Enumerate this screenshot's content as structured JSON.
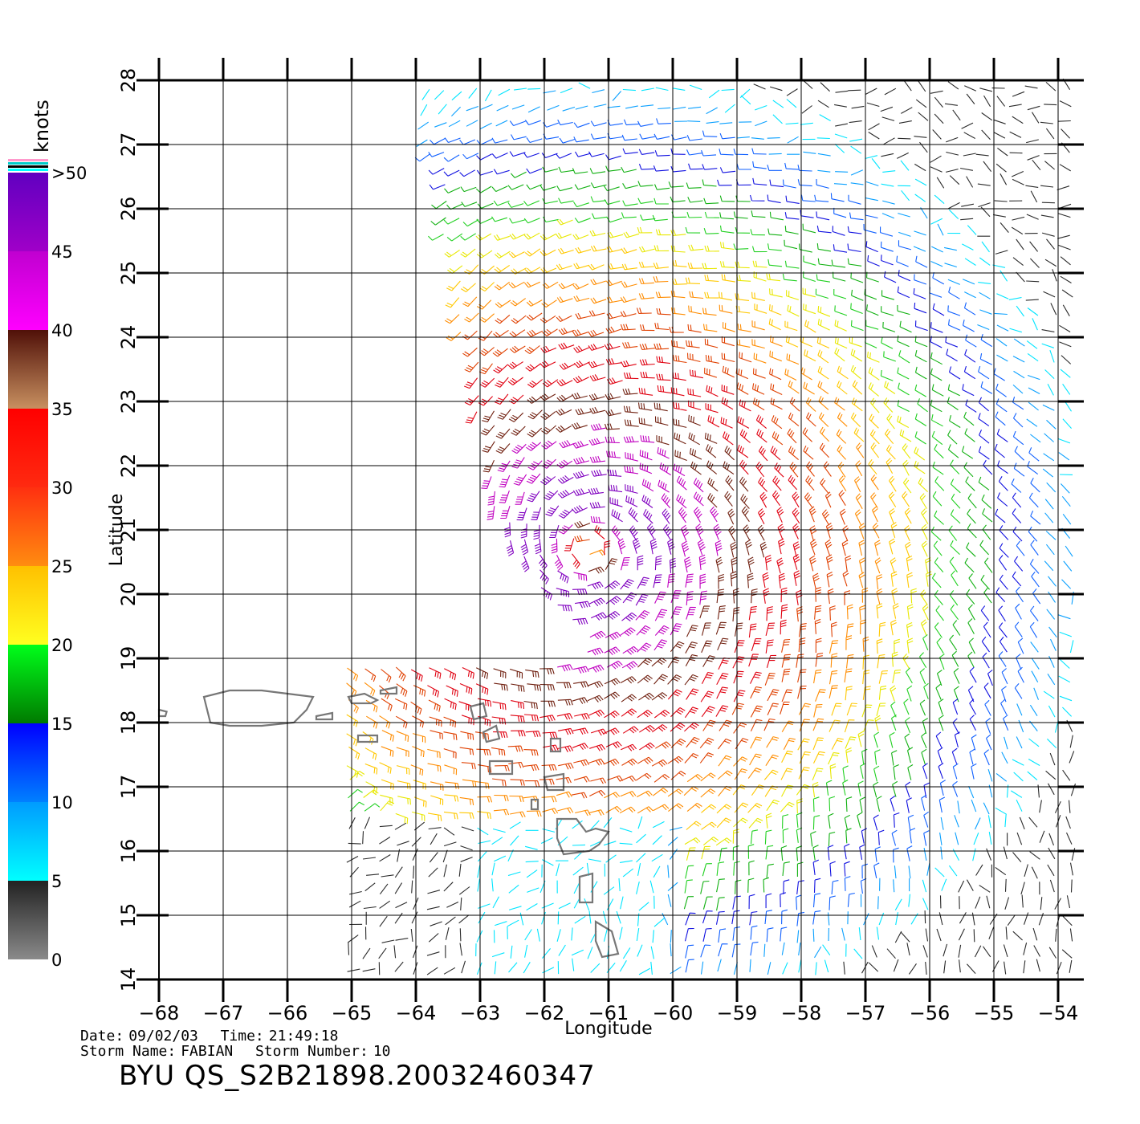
{
  "map": {
    "title_lines": {
      "date_label": "Date:",
      "date": "09/02/03",
      "time_label": "Time:",
      "time": "21:49:18",
      "storm_name_label": "Storm Name:",
      "storm_name": "FABIAN",
      "storm_number_label": "Storm Number:",
      "storm_number": "10"
    },
    "file_id": "BYU  QS_S2B21898.20032460347",
    "xlabel": "Longitude",
    "ylabel": "Latitude",
    "lon_ticks": [
      "−68",
      "−67",
      "−66",
      "−65",
      "−64",
      "−63",
      "−62",
      "−61",
      "−60",
      "−59",
      "−58",
      "−57",
      "−56",
      "−55",
      "−54"
    ],
    "lat_ticks": [
      "14",
      "15",
      "16",
      "17",
      "18",
      "19",
      "20",
      "21",
      "22",
      "23",
      "24",
      "25",
      "26",
      "27",
      "28"
    ],
    "lon_range": [
      -68,
      -54
    ],
    "lat_range": [
      14,
      28
    ],
    "storm_center": {
      "lon": -61.3,
      "lat": 20.7
    },
    "grid": true
  },
  "legend": {
    "unit": "knots",
    "labels": [
      "0",
      "5",
      "10",
      "15",
      "20",
      "25",
      "30",
      "35",
      "40",
      "45",
      ">50"
    ],
    "bands": [
      {
        "from": 0,
        "to": 5,
        "colors": [
          "#8a8a8a",
          "#222222"
        ]
      },
      {
        "from": 5,
        "to": 10,
        "colors": [
          "#00ffff",
          "#009bff"
        ]
      },
      {
        "from": 10,
        "to": 15,
        "colors": [
          "#0080ff",
          "#0000ff"
        ]
      },
      {
        "from": 15,
        "to": 20,
        "colors": [
          "#007a00",
          "#00ff1a"
        ]
      },
      {
        "from": 20,
        "to": 25,
        "colors": [
          "#ffff20",
          "#ffc000"
        ]
      },
      {
        "from": 25,
        "to": 30,
        "colors": [
          "#ff8c10",
          "#ff3010"
        ]
      },
      {
        "from": 30,
        "to": 35,
        "colors": [
          "#ff2a10",
          "#ff0000"
        ]
      },
      {
        "from": 35,
        "to": 40,
        "colors": [
          "#c89060",
          "#501008"
        ]
      },
      {
        "from": 40,
        "to": 45,
        "colors": [
          "#ff00ff",
          "#c000d0"
        ]
      },
      {
        "from": 45,
        "to": 50,
        "colors": [
          "#a000c8",
          "#6000c0"
        ]
      }
    ],
    "top_stripes": [
      "#ff99cc",
      "#00cccc",
      "#000000",
      "#00ffff"
    ]
  },
  "land_color": "#777777"
}
